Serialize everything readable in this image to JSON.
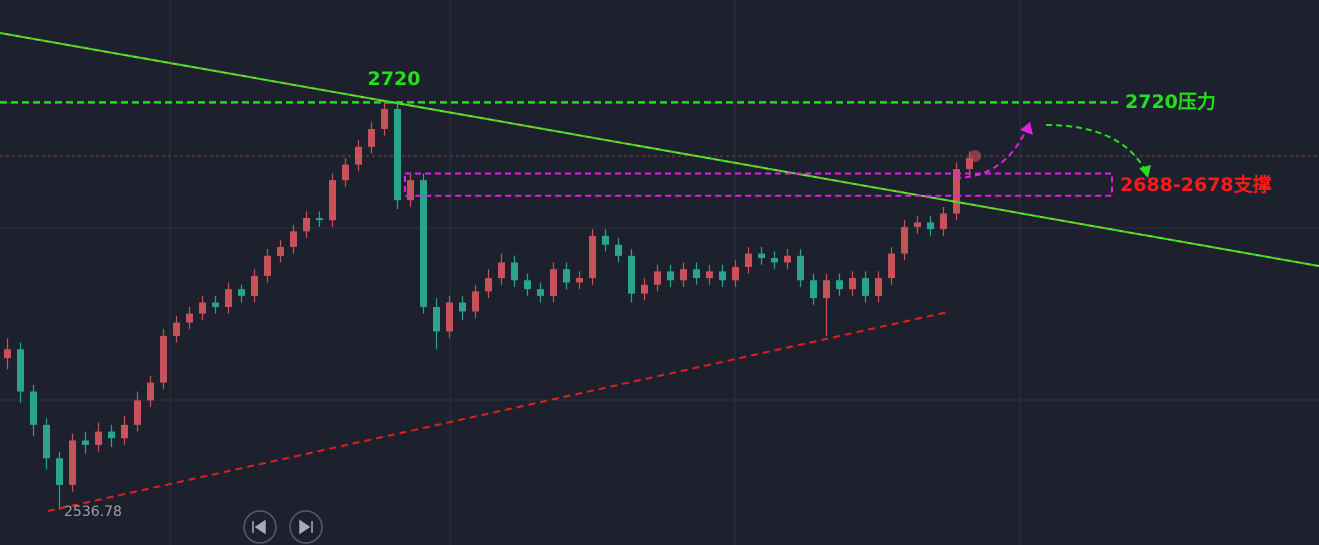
{
  "chart_data": {
    "type": "candlestick",
    "ylim": [
      2521,
      2766
    ],
    "up_color": "#c9525a",
    "down_color": "#2aa38f",
    "candles": [
      [
        2605,
        2614,
        2600,
        2609
      ],
      [
        2609,
        2612,
        2585,
        2590
      ],
      [
        2590,
        2593,
        2570,
        2575
      ],
      [
        2575,
        2578,
        2555,
        2560
      ],
      [
        2560,
        2563,
        2537,
        2548
      ],
      [
        2548,
        2571,
        2545,
        2568
      ],
      [
        2568,
        2572,
        2562,
        2566
      ],
      [
        2566,
        2576,
        2563,
        2572
      ],
      [
        2572,
        2575,
        2565,
        2569
      ],
      [
        2569,
        2579,
        2566,
        2575
      ],
      [
        2575,
        2590,
        2572,
        2586
      ],
      [
        2586,
        2597,
        2583,
        2594
      ],
      [
        2594,
        2618,
        2591,
        2615
      ],
      [
        2615,
        2624,
        2612,
        2621
      ],
      [
        2621,
        2628,
        2618,
        2625
      ],
      [
        2625,
        2633,
        2622,
        2630
      ],
      [
        2630,
        2633,
        2625,
        2628
      ],
      [
        2628,
        2639,
        2625,
        2636
      ],
      [
        2636,
        2638,
        2630,
        2633
      ],
      [
        2633,
        2645,
        2630,
        2642
      ],
      [
        2642,
        2654,
        2639,
        2651
      ],
      [
        2651,
        2658,
        2648,
        2655
      ],
      [
        2655,
        2665,
        2652,
        2662
      ],
      [
        2662,
        2671,
        2659,
        2668
      ],
      [
        2668,
        2671,
        2664,
        2667
      ],
      [
        2667,
        2688,
        2664,
        2685
      ],
      [
        2685,
        2695,
        2682,
        2692
      ],
      [
        2692,
        2703,
        2689,
        2700
      ],
      [
        2700,
        2711,
        2697,
        2708
      ],
      [
        2708,
        2720,
        2705,
        2717
      ],
      [
        2717,
        2720,
        2672,
        2676
      ],
      [
        2676,
        2688,
        2673,
        2685
      ],
      [
        2685,
        2688,
        2625,
        2628
      ],
      [
        2628,
        2632,
        2609,
        2617
      ],
      [
        2617,
        2633,
        2614,
        2630
      ],
      [
        2630,
        2633,
        2622,
        2626
      ],
      [
        2626,
        2638,
        2623,
        2635
      ],
      [
        2635,
        2645,
        2632,
        2641
      ],
      [
        2641,
        2652,
        2638,
        2648
      ],
      [
        2648,
        2651,
        2637,
        2640
      ],
      [
        2640,
        2643,
        2633,
        2636
      ],
      [
        2636,
        2639,
        2630,
        2633
      ],
      [
        2633,
        2648,
        2630,
        2645
      ],
      [
        2645,
        2648,
        2636,
        2639
      ],
      [
        2639,
        2644,
        2636,
        2641
      ],
      [
        2641,
        2663,
        2638,
        2660
      ],
      [
        2660,
        2663,
        2653,
        2656
      ],
      [
        2656,
        2659,
        2648,
        2651
      ],
      [
        2651,
        2654,
        2630,
        2634
      ],
      [
        2634,
        2641,
        2631,
        2638
      ],
      [
        2638,
        2647,
        2635,
        2644
      ],
      [
        2644,
        2647,
        2637,
        2640
      ],
      [
        2640,
        2648,
        2637,
        2645
      ],
      [
        2645,
        2648,
        2638,
        2641
      ],
      [
        2641,
        2647,
        2638,
        2644
      ],
      [
        2644,
        2647,
        2637,
        2640
      ],
      [
        2640,
        2649,
        2637,
        2646
      ],
      [
        2646,
        2655,
        2643,
        2652
      ],
      [
        2652,
        2655,
        2647,
        2650
      ],
      [
        2650,
        2653,
        2645,
        2648
      ],
      [
        2648,
        2654,
        2645,
        2651
      ],
      [
        2651,
        2654,
        2637,
        2640
      ],
      [
        2640,
        2643,
        2629,
        2632
      ],
      [
        2632,
        2643,
        2615,
        2640
      ],
      [
        2640,
        2643,
        2633,
        2636
      ],
      [
        2636,
        2644,
        2633,
        2641
      ],
      [
        2641,
        2644,
        2630,
        2633
      ],
      [
        2633,
        2644,
        2630,
        2641
      ],
      [
        2641,
        2655,
        2638,
        2652
      ],
      [
        2652,
        2667,
        2649,
        2664
      ],
      [
        2664,
        2669,
        2661,
        2666
      ],
      [
        2666,
        2669,
        2660,
        2663
      ],
      [
        2663,
        2673,
        2660,
        2670
      ],
      [
        2670,
        2693,
        2667,
        2690
      ],
      [
        2690,
        2698,
        2687,
        2695
      ]
    ],
    "peak_label": {
      "value": 2720,
      "label": "2720"
    },
    "low_label": {
      "value": 2536.78,
      "label": "2536.78"
    },
    "resistance": {
      "value": 2720,
      "label": "2720压力",
      "color": "#22e01c"
    },
    "support": {
      "top": 2688,
      "bottom": 2678,
      "label": "2688-2678支撑",
      "color": "#e020e0",
      "label_color": "#ff1a1a"
    }
  }
}
